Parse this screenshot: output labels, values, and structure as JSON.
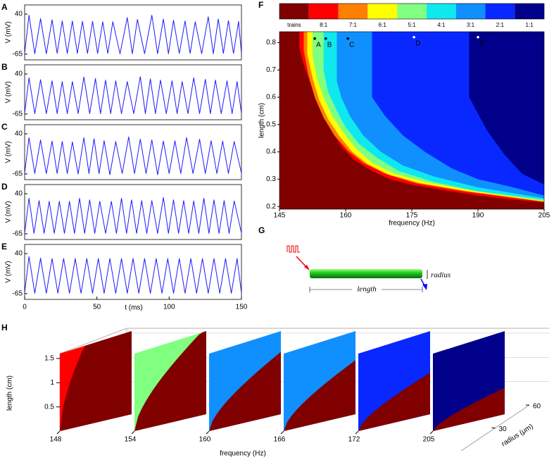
{
  "chart_data": [
    {
      "type": "line",
      "panel": "A",
      "ylabel": "V (mV)",
      "color": "#1a1aff",
      "xlim": [
        0,
        150
      ],
      "ylim": [
        -80,
        64
      ],
      "yticks": [
        -65,
        40
      ],
      "x": [
        0,
        3,
        7,
        11,
        15,
        19,
        22.5,
        26,
        29.5,
        33,
        36.5,
        40,
        43.5,
        47,
        50.5,
        54,
        57.5,
        61,
        66,
        71,
        74.5,
        78,
        83,
        88,
        92,
        96,
        99.5,
        103,
        107,
        111,
        114.5,
        118,
        122.5,
        127,
        130.5,
        134,
        137.5,
        141,
        144.5,
        148,
        150
      ],
      "values": [
        -63,
        37,
        -64,
        28,
        -64,
        25,
        -63,
        22,
        -63,
        22,
        -63,
        21,
        -63,
        21,
        -63,
        20,
        -63,
        20,
        -64,
        31,
        -64,
        26,
        -64,
        37,
        -64,
        27,
        -64,
        24,
        -63,
        22,
        -63,
        20,
        -64,
        33,
        -64,
        27,
        -63,
        23,
        -63,
        21,
        -63
      ]
    },
    {
      "type": "line",
      "panel": "B",
      "ylabel": "V (mV)",
      "color": "#1a1aff",
      "xlim": [
        0,
        150
      ],
      "ylim": [
        -80,
        64
      ],
      "yticks": [
        -65,
        40
      ],
      "x": [
        0,
        3,
        7,
        11,
        15,
        19,
        22.5,
        26,
        29.5,
        33,
        37,
        41,
        45,
        49,
        52.5,
        56,
        59.5,
        63,
        67,
        71,
        75.5,
        80,
        83.5,
        87,
        90.5,
        94,
        98,
        102,
        105.5,
        109,
        113,
        117,
        121,
        125,
        128.5,
        132,
        136,
        140,
        143.5,
        147,
        150
      ],
      "values": [
        -63,
        30,
        -64,
        25,
        -64,
        22,
        -64,
        20,
        -64,
        20,
        -64,
        32,
        -64,
        28,
        -64,
        24,
        -64,
        22,
        -64,
        20,
        -64,
        33,
        -64,
        27,
        -64,
        24,
        -64,
        22,
        -64,
        20,
        -64,
        30,
        -64,
        26,
        -64,
        24,
        -64,
        22,
        -64,
        20,
        -63
      ]
    },
    {
      "type": "line",
      "panel": "C",
      "ylabel": "V (mV)",
      "color": "#1a1aff",
      "xlim": [
        0,
        150
      ],
      "ylim": [
        -80,
        64
      ],
      "yticks": [
        -65,
        40
      ],
      "x": [
        0,
        3,
        7,
        11,
        15,
        19,
        22.5,
        26,
        29.5,
        33,
        37,
        41,
        44.5,
        48,
        51.5,
        55,
        59,
        63,
        67.5,
        72,
        76,
        80,
        84,
        88,
        92,
        96,
        100,
        104,
        108,
        112,
        116.5,
        121,
        125,
        129,
        133,
        137,
        141,
        145,
        150
      ],
      "values": [
        -63,
        30,
        -64,
        24,
        -64,
        21,
        -64,
        20,
        -64,
        19,
        -65,
        30,
        -64,
        27,
        -64,
        22,
        -67,
        20,
        -64,
        32,
        -64,
        26,
        -64,
        24,
        -67,
        21,
        -64,
        22,
        -64,
        30,
        -64,
        26,
        -64,
        22,
        -64,
        21,
        -64,
        20,
        -63
      ]
    },
    {
      "type": "line",
      "panel": "D",
      "ylabel": "V (mV)",
      "color": "#1a1aff",
      "xlim": [
        0,
        150
      ],
      "ylim": [
        -80,
        64
      ],
      "yticks": [
        -65,
        40
      ],
      "x": [
        0,
        3,
        6.5,
        10,
        13.5,
        17,
        20.5,
        24,
        27.5,
        31,
        34.5,
        38,
        41.5,
        45,
        48.5,
        52,
        56,
        60,
        63.5,
        67,
        70.5,
        74,
        77.5,
        81,
        84.5,
        88,
        92,
        96,
        99.5,
        103,
        106.5,
        110,
        113.5,
        117,
        120.5,
        124,
        127.5,
        131,
        134.5,
        138,
        141.5,
        145,
        150
      ],
      "values": [
        -63,
        28,
        -64,
        22,
        -64,
        20,
        -64,
        20,
        -64,
        20,
        -64,
        28,
        -64,
        24,
        -64,
        20,
        -64,
        20,
        -64,
        28,
        -64,
        24,
        -64,
        22,
        -64,
        22,
        -64,
        30,
        -64,
        24,
        -64,
        22,
        -64,
        21,
        -64,
        28,
        -64,
        24,
        -64,
        22,
        -64,
        21,
        -63
      ]
    },
    {
      "type": "line",
      "panel": "E",
      "ylabel": "V (mV)",
      "xlabel": "t (ms)",
      "color": "#1a1aff",
      "xlim": [
        0,
        150
      ],
      "ylim": [
        -80,
        64
      ],
      "yticks": [
        -65,
        40
      ],
      "xticks": [
        0,
        50,
        100,
        150
      ],
      "x": [
        0,
        3,
        7,
        11,
        15,
        19,
        23,
        27,
        31,
        35,
        39,
        43,
        47,
        51,
        55,
        59,
        63,
        67,
        71,
        75,
        79,
        83,
        87,
        91,
        95,
        99,
        103,
        107,
        111,
        115,
        119,
        123,
        127,
        131,
        135,
        139,
        143,
        147,
        150
      ],
      "values": [
        -63,
        32,
        -64,
        28,
        -64,
        27,
        -64,
        27,
        -64,
        27,
        -64,
        27,
        -64,
        27,
        -64,
        27,
        -64,
        27,
        -64,
        27,
        -64,
        27,
        -64,
        27,
        -64,
        27,
        -64,
        27,
        -64,
        27,
        -64,
        27,
        -64,
        27,
        -64,
        27,
        -64,
        27,
        -63
      ]
    },
    {
      "type": "regions",
      "panel": "F",
      "xlabel": "frequency (Hz)",
      "ylabel": "length (cm)",
      "xlim": [
        145,
        205
      ],
      "ylim": [
        0.19,
        0.84
      ],
      "xticks": [
        145,
        160,
        175,
        190,
        205
      ],
      "yticks": [
        0.2,
        0.3,
        0.4,
        0.5,
        0.6,
        0.7,
        0.8
      ],
      "series": [
        {
          "name": "trains",
          "color": "#800000"
        },
        {
          "name": "8:1",
          "color": "#ff0000",
          "x": [
            149.5,
            149.5,
            150.5,
            152,
            153.5,
            155,
            157,
            159,
            162,
            166,
            170,
            175,
            182,
            190,
            198,
            205
          ],
          "values": [
            0.83,
            0.78,
            0.72,
            0.65,
            0.58,
            0.53,
            0.47,
            0.42,
            0.37,
            0.33,
            0.3,
            0.28,
            0.26,
            0.24,
            0.225,
            0.215
          ]
        },
        {
          "name": "7:1",
          "color": "#ff8000",
          "x": [
            150.5,
            150.5,
            151.6,
            153,
            155,
            157.5,
            160.5,
            164,
            169,
            176,
            187,
            205
          ],
          "values": [
            0.83,
            0.77,
            0.68,
            0.6,
            0.525,
            0.46,
            0.405,
            0.36,
            0.32,
            0.285,
            0.255,
            0.217
          ]
        },
        {
          "name": "6:1",
          "color": "#ffff00",
          "x": [
            151.3,
            151.3,
            152.5,
            154,
            156,
            158.5,
            161.5,
            165,
            170,
            177,
            188,
            205
          ],
          "values": [
            0.83,
            0.76,
            0.67,
            0.59,
            0.52,
            0.46,
            0.4,
            0.355,
            0.315,
            0.285,
            0.255,
            0.218
          ]
        },
        {
          "name": "5:1",
          "color": "#80ff80",
          "x": [
            152.5,
            152.5,
            153.5,
            155,
            157,
            159.5,
            162.5,
            166,
            171,
            178,
            188,
            205
          ],
          "values": [
            0.83,
            0.75,
            0.67,
            0.6,
            0.53,
            0.47,
            0.41,
            0.36,
            0.32,
            0.29,
            0.26,
            0.22
          ]
        },
        {
          "name": "4:1",
          "color": "#10e8f0",
          "x": [
            155,
            155,
            156,
            158,
            160,
            163,
            167,
            172,
            180,
            190,
            205
          ],
          "values": [
            0.83,
            0.7,
            0.62,
            0.55,
            0.49,
            0.43,
            0.38,
            0.33,
            0.29,
            0.255,
            0.225
          ]
        },
        {
          "name": "3:1",
          "color": "#1090ff",
          "x": [
            158,
            158,
            159,
            161,
            164,
            168,
            173,
            180,
            190,
            205
          ],
          "values": [
            0.83,
            0.66,
            0.6,
            0.53,
            0.46,
            0.4,
            0.35,
            0.31,
            0.27,
            0.23
          ]
        },
        {
          "name": "2:1",
          "color": "#0828ff",
          "x": [
            166,
            166,
            169,
            173,
            178,
            184,
            190,
            198,
            205
          ],
          "values": [
            0.83,
            0.6,
            0.53,
            0.46,
            0.4,
            0.34,
            0.3,
            0.27,
            0.24
          ]
        },
        {
          "name": "1:1",
          "color": "#00008a",
          "x": [
            188,
            188,
            192,
            196,
            200,
            205
          ],
          "values": [
            0.83,
            0.6,
            0.48,
            0.39,
            0.32,
            0.28
          ]
        }
      ],
      "annotations": [
        {
          "x": 153,
          "y": 0.815,
          "label": "A",
          "color": "#000000"
        },
        {
          "x": 155.5,
          "y": 0.815,
          "label": "B",
          "color": "#000000"
        },
        {
          "x": 160.5,
          "y": 0.815,
          "label": "C",
          "color": "#000000"
        },
        {
          "x": 175.5,
          "y": 0.82,
          "label": "D",
          "color": "#ffffff"
        },
        {
          "x": 190,
          "y": 0.82,
          "label": "E",
          "color": "#ffffff"
        }
      ]
    },
    {
      "type": "slices",
      "panel": "H",
      "xlabel": "frequency (Hz)",
      "ylabel": "length (cm)",
      "zlabel": "radius (μm)",
      "xticks": [
        148,
        154,
        160,
        166,
        172,
        205
      ],
      "ylim": [
        0,
        1.6
      ],
      "yticks": [
        0.5,
        1,
        1.5
      ],
      "zlim": [
        0,
        60
      ],
      "zticks": [
        30,
        60
      ],
      "base_color": "#800000",
      "slice_colors": [
        "#ff0000",
        "#80ff80",
        "#1090ff",
        "#1090ff",
        "#0828ff",
        "#00008a"
      ]
    }
  ],
  "diagram": {
    "panel": "G",
    "radius_label": "radius",
    "length_label": "length"
  }
}
